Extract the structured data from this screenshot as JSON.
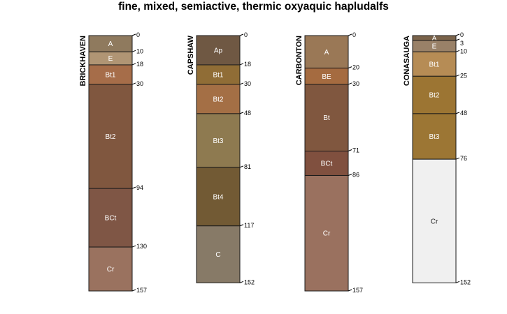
{
  "chart_data": {
    "type": "soil-profile",
    "title": "fine, mixed, semiactive, thermic oxyaquic hapludalfs",
    "depth_units": "cm",
    "profiles": [
      {
        "name": "BRICKHAVEN",
        "horizons": [
          {
            "name": "A",
            "top": 0,
            "bottom": 10,
            "color": "#8f7a5e"
          },
          {
            "name": "E",
            "top": 10,
            "bottom": 18,
            "color": "#b09574"
          },
          {
            "name": "Bt1",
            "top": 18,
            "bottom": 30,
            "color": "#a66d49"
          },
          {
            "name": "Bt2",
            "top": 30,
            "bottom": 94,
            "color": "#80573f"
          },
          {
            "name": "BCt",
            "top": 94,
            "bottom": 130,
            "color": "#7f5645"
          },
          {
            "name": "Cr",
            "top": 130,
            "bottom": 157,
            "color": "#9a725f"
          }
        ]
      },
      {
        "name": "CAPSHAW",
        "horizons": [
          {
            "name": "Ap",
            "top": 0,
            "bottom": 18,
            "color": "#6f5843"
          },
          {
            "name": "Bt1",
            "top": 18,
            "bottom": 30,
            "color": "#906d36"
          },
          {
            "name": "Bt2",
            "top": 30,
            "bottom": 48,
            "color": "#a46f45"
          },
          {
            "name": "Bt3",
            "top": 48,
            "bottom": 81,
            "color": "#8e7a50"
          },
          {
            "name": "Bt4",
            "top": 81,
            "bottom": 117,
            "color": "#725a34"
          },
          {
            "name": "C",
            "top": 117,
            "bottom": 152,
            "color": "#877a67"
          }
        ]
      },
      {
        "name": "CARBONTON",
        "horizons": [
          {
            "name": "A",
            "top": 0,
            "bottom": 20,
            "color": "#9a7856"
          },
          {
            "name": "BE",
            "top": 20,
            "bottom": 30,
            "color": "#a56b40"
          },
          {
            "name": "Bt",
            "top": 30,
            "bottom": 71,
            "color": "#80573f"
          },
          {
            "name": "BCt",
            "top": 71,
            "bottom": 86,
            "color": "#80503f"
          },
          {
            "name": "Cr",
            "top": 86,
            "bottom": 157,
            "color": "#9a715f"
          }
        ]
      },
      {
        "name": "CONASAUGA",
        "horizons": [
          {
            "name": "A",
            "top": 0,
            "bottom": 3,
            "color": "#7a634a"
          },
          {
            "name": "E",
            "top": 3,
            "bottom": 10,
            "color": "#998168"
          },
          {
            "name": "Bt1",
            "top": 10,
            "bottom": 25,
            "color": "#b68c55"
          },
          {
            "name": "Bt2",
            "top": 25,
            "bottom": 48,
            "color": "#9c7533"
          },
          {
            "name": "Bt3",
            "top": 48,
            "bottom": 76,
            "color": "#9c7634"
          },
          {
            "name": "Cr",
            "top": 76,
            "bottom": 152,
            "color": "#f0f0f0",
            "label_color": "#222222"
          }
        ]
      }
    ]
  }
}
